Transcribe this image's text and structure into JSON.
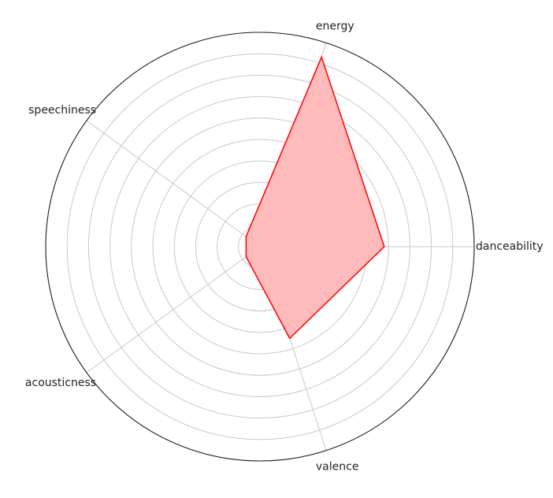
{
  "chart_data": {
    "type": "radar",
    "title": "",
    "categories": [
      "danceability",
      "energy",
      "speechiness",
      "acousticness",
      "valence"
    ],
    "series": [
      {
        "values": [
          0.58,
          0.93,
          0.08,
          0.08,
          0.45
        ],
        "color": "#ff0000",
        "fill": "#ffbbbb"
      }
    ],
    "rlim": [
      0,
      1
    ],
    "ring_count": 10,
    "tick_labels_visible": false,
    "grid": true,
    "legend": false
  }
}
